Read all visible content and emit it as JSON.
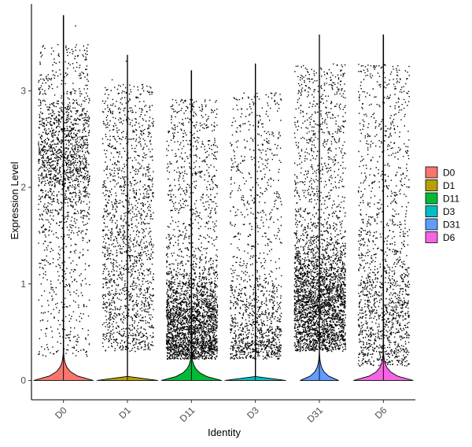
{
  "chart_data": {
    "type": "violin",
    "xlabel": "Identity",
    "ylabel": "Expression Level",
    "ylim": [
      -0.2,
      3.9
    ],
    "yticks": [
      0,
      1,
      2,
      3
    ],
    "categories": [
      "D0",
      "D1",
      "D11",
      "D3",
      "D31",
      "D6"
    ],
    "colors": [
      "#F8766D",
      "#B79F00",
      "#00BA38",
      "#00BFC4",
      "#619CFF",
      "#F564E3"
    ],
    "legend": {
      "position": "right",
      "entries": [
        "D0",
        "D1",
        "D11",
        "D3",
        "D31",
        "D6"
      ]
    },
    "grid": false,
    "groups": [
      {
        "name": "D0",
        "max": 3.78,
        "violin_width": 0.93,
        "n_points": 1800,
        "dense_center": 2.3,
        "dense_spread": 0.35,
        "dense_fraction": 0.55,
        "low": 0.25
      },
      {
        "name": "D1",
        "max": 3.37,
        "violin_width": 0.95,
        "n_points": 1600,
        "dense_center": 1.1,
        "dense_spread": 0.7,
        "dense_fraction": 0.35,
        "low": 0.3
      },
      {
        "name": "D11",
        "max": 3.21,
        "violin_width": 0.94,
        "n_points": 2900,
        "dense_center": 0.55,
        "dense_spread": 0.3,
        "dense_fraction": 0.65,
        "low": 0.22
      },
      {
        "name": "D3",
        "max": 3.28,
        "violin_width": 0.95,
        "n_points": 1300,
        "dense_center": 0.5,
        "dense_spread": 0.3,
        "dense_fraction": 0.45,
        "low": 0.22
      },
      {
        "name": "D31",
        "max": 3.58,
        "violin_width": 0.6,
        "n_points": 3300,
        "dense_center": 0.8,
        "dense_spread": 0.35,
        "dense_fraction": 0.65,
        "low": 0.3
      },
      {
        "name": "D6",
        "max": 3.58,
        "violin_width": 0.93,
        "n_points": 1500,
        "dense_center": 0.7,
        "dense_spread": 0.45,
        "dense_fraction": 0.45,
        "low": 0.15
      }
    ]
  }
}
